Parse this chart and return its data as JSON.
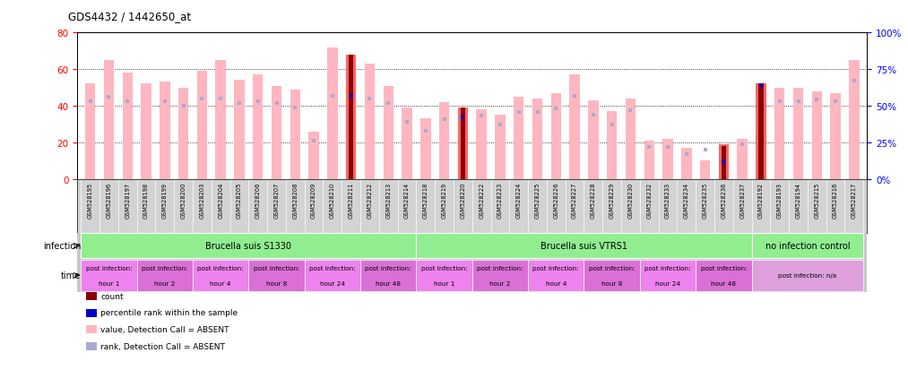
{
  "title": "GDS4432 / 1442650_at",
  "samples": [
    "GSM528195",
    "GSM528196",
    "GSM528197",
    "GSM528198",
    "GSM528199",
    "GSM528200",
    "GSM528203",
    "GSM528204",
    "GSM528205",
    "GSM528206",
    "GSM528207",
    "GSM528208",
    "GSM528209",
    "GSM528210",
    "GSM528211",
    "GSM528212",
    "GSM528213",
    "GSM528214",
    "GSM528218",
    "GSM528219",
    "GSM528220",
    "GSM528222",
    "GSM528223",
    "GSM528224",
    "GSM528225",
    "GSM528226",
    "GSM528227",
    "GSM528228",
    "GSM528229",
    "GSM528230",
    "GSM528232",
    "GSM528233",
    "GSM528234",
    "GSM528235",
    "GSM528236",
    "GSM528237",
    "GSM528192",
    "GSM528193",
    "GSM528194",
    "GSM528215",
    "GSM528216",
    "GSM528217"
  ],
  "values": [
    52,
    65,
    58,
    52,
    53,
    50,
    59,
    65,
    54,
    57,
    51,
    49,
    26,
    72,
    68,
    63,
    51,
    39,
    33,
    42,
    39,
    38,
    35,
    45,
    44,
    47,
    57,
    43,
    37,
    44,
    21,
    22,
    17,
    10,
    19,
    22,
    52,
    50,
    50,
    48,
    47,
    65
  ],
  "counts": [
    0,
    0,
    0,
    0,
    0,
    0,
    0,
    0,
    0,
    0,
    0,
    0,
    0,
    0,
    68,
    0,
    0,
    0,
    0,
    0,
    39,
    0,
    0,
    0,
    0,
    0,
    0,
    0,
    0,
    0,
    0,
    0,
    0,
    0,
    18,
    0,
    52,
    0,
    0,
    0,
    0,
    0
  ],
  "ranks": [
    53,
    56,
    53,
    0,
    53,
    50,
    55,
    55,
    52,
    53,
    52,
    49,
    26,
    57,
    57,
    55,
    52,
    39,
    33,
    41,
    42,
    43,
    37,
    46,
    46,
    48,
    57,
    44,
    37,
    47,
    22,
    22,
    17,
    20,
    12,
    24,
    64,
    53,
    53,
    54,
    53,
    67
  ],
  "detection_absent": [
    true,
    true,
    true,
    true,
    true,
    true,
    true,
    true,
    true,
    true,
    true,
    true,
    true,
    true,
    false,
    true,
    true,
    true,
    true,
    true,
    false,
    true,
    true,
    true,
    true,
    true,
    true,
    true,
    true,
    true,
    true,
    true,
    true,
    true,
    false,
    true,
    false,
    true,
    true,
    true,
    true,
    true
  ],
  "infection_groups": [
    {
      "label": "Brucella suis S1330",
      "start": 0,
      "end": 18,
      "color": "#90EE90"
    },
    {
      "label": "Brucella suis VTRS1",
      "start": 18,
      "end": 36,
      "color": "#90EE90"
    },
    {
      "label": "no infection control",
      "start": 36,
      "end": 42,
      "color": "#90EE90"
    }
  ],
  "time_groups": [
    {
      "label": "post infection:\nhour 1",
      "start": 0,
      "end": 3
    },
    {
      "label": "post infection:\nhour 2",
      "start": 3,
      "end": 6
    },
    {
      "label": "post infection:\nhour 4",
      "start": 6,
      "end": 9
    },
    {
      "label": "post infection:\nhour 8",
      "start": 9,
      "end": 12
    },
    {
      "label": "post infection:\nhour 24",
      "start": 12,
      "end": 15
    },
    {
      "label": "post infection:\nhour 48",
      "start": 15,
      "end": 18
    },
    {
      "label": "post infection:\nhour 1",
      "start": 18,
      "end": 21
    },
    {
      "label": "post infection:\nhour 2",
      "start": 21,
      "end": 24
    },
    {
      "label": "post infection:\nhour 4",
      "start": 24,
      "end": 27
    },
    {
      "label": "post infection:\nhour 8",
      "start": 27,
      "end": 30
    },
    {
      "label": "post infection:\nhour 24",
      "start": 30,
      "end": 33
    },
    {
      "label": "post infection:\nhour 48",
      "start": 33,
      "end": 36
    },
    {
      "label": "post infection: n/a",
      "start": 36,
      "end": 42
    }
  ],
  "time_colors": [
    "#EE82EE",
    "#DA70D6",
    "#EE82EE",
    "#DA70D6",
    "#EE82EE",
    "#DA70D6",
    "#EE82EE",
    "#DA70D6",
    "#EE82EE",
    "#DA70D6",
    "#EE82EE",
    "#DA70D6",
    "#DDA0DD"
  ],
  "ylim_left": [
    0,
    80
  ],
  "ylim_right": [
    0,
    100
  ],
  "yticks_left": [
    0,
    20,
    40,
    60,
    80
  ],
  "yticks_right": [
    0,
    25,
    50,
    75,
    100
  ],
  "bar_width": 0.55,
  "value_color_absent": "#FFB6C1",
  "value_color_present": "#FF6666",
  "count_color": "#8B0000",
  "rank_color_absent": "#AAAACC",
  "rank_color_present": "#0000CD",
  "bg_color": "#FFFFFF",
  "plot_bg_color": "#FFFFFF",
  "grid_color": "#000000",
  "left_tick_color": "#FF0000",
  "right_tick_color": "#0000FF",
  "xtick_bg": "#D3D3D3"
}
